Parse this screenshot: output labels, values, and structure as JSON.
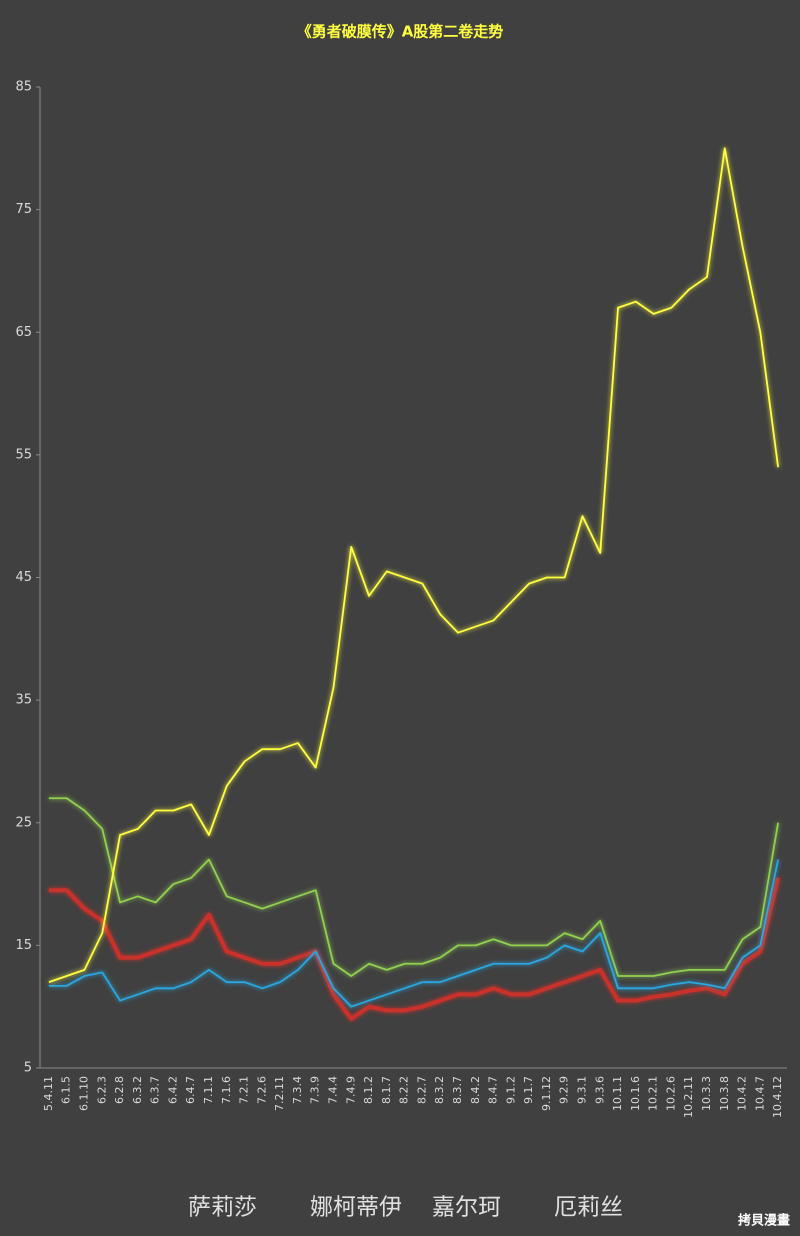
{
  "chart_data": {
    "type": "line",
    "title": "《勇者破膜传》A股第二卷走势",
    "categories": [
      "5.4.11",
      "6.1.5",
      "6.1.10",
      "6.2.3",
      "6.2.8",
      "6.3.2",
      "6.3.7",
      "6.4.2",
      "6.4.7",
      "7.1.1",
      "7.1.6",
      "7.2.1",
      "7.2.6",
      "7.2.11",
      "7.3.4",
      "7.3.9",
      "7.4.4",
      "7.4.9",
      "8.1.2",
      "8.1.7",
      "8.2.2",
      "8.2.7",
      "8.3.2",
      "8.3.7",
      "8.4.2",
      "8.4.7",
      "9.1.2",
      "9.1.7",
      "9.1.12",
      "9.2.9",
      "9.3.1",
      "9.3.6",
      "10.1.1",
      "10.1.6",
      "10.2.1",
      "10.2.6",
      "10.2.11",
      "10.3.3",
      "10.3.8",
      "10.4.2",
      "10.4.7",
      "10.4.12"
    ],
    "series": [
      {
        "name": "萨莉莎",
        "color": "#c8302a",
        "values": [
          19.5,
          19.5,
          18,
          17,
          14,
          14,
          14.5,
          15,
          15.5,
          17.5,
          14.5,
          14,
          13.5,
          13.5,
          14,
          14.5,
          11,
          9,
          10,
          9.7,
          9.7,
          10,
          10.5,
          11,
          11,
          11.5,
          11,
          11,
          11.5,
          12,
          12.5,
          13,
          10.5,
          10.5,
          10.8,
          11,
          11.3,
          11.5,
          11,
          13.5,
          14.5,
          20.5
        ]
      },
      {
        "name": "娜柯蒂伊",
        "color": "#92d050",
        "values": [
          27,
          27,
          26,
          24.5,
          18.5,
          19,
          18.5,
          20,
          20.5,
          22,
          19,
          18.5,
          18,
          18.5,
          19,
          19.5,
          13.5,
          12.5,
          13.5,
          13,
          13.5,
          13.5,
          14,
          15,
          15,
          15.5,
          15,
          15,
          15,
          16,
          15.5,
          17,
          12.5,
          12.5,
          12.5,
          12.8,
          13,
          13,
          13,
          15.5,
          16.5,
          25
        ]
      },
      {
        "name": "嘉尔珂",
        "color": "#2aa7e0",
        "values": [
          11.7,
          11.7,
          12.5,
          12.8,
          10.5,
          11,
          11.5,
          11.5,
          12,
          13,
          12,
          12,
          11.5,
          12,
          13,
          14.5,
          11.5,
          10,
          10.5,
          11,
          11.5,
          12,
          12,
          12.5,
          13,
          13.5,
          13.5,
          13.5,
          14,
          15,
          14.5,
          16,
          11.5,
          11.5,
          11.5,
          11.8,
          12,
          11.8,
          11.5,
          14,
          15,
          22
        ]
      },
      {
        "name": "厄莉丝",
        "color": "#ffff40",
        "values": [
          12,
          12.5,
          13,
          16,
          24,
          24.5,
          26,
          26,
          26.5,
          24,
          28,
          30,
          31,
          31,
          31.5,
          29.5,
          36,
          47.5,
          43.5,
          45.5,
          45,
          44.5,
          42,
          40.5,
          41,
          41.5,
          43,
          44.5,
          45,
          45,
          50,
          47,
          67,
          67.5,
          66.5,
          67,
          68.5,
          69.5,
          80,
          72,
          65,
          54
        ]
      }
    ],
    "ylim": [
      5,
      85
    ],
    "yticks": [
      5,
      15,
      25,
      35,
      45,
      55,
      65,
      75,
      85
    ],
    "grid": false,
    "watermark": "拷貝漫畫"
  }
}
